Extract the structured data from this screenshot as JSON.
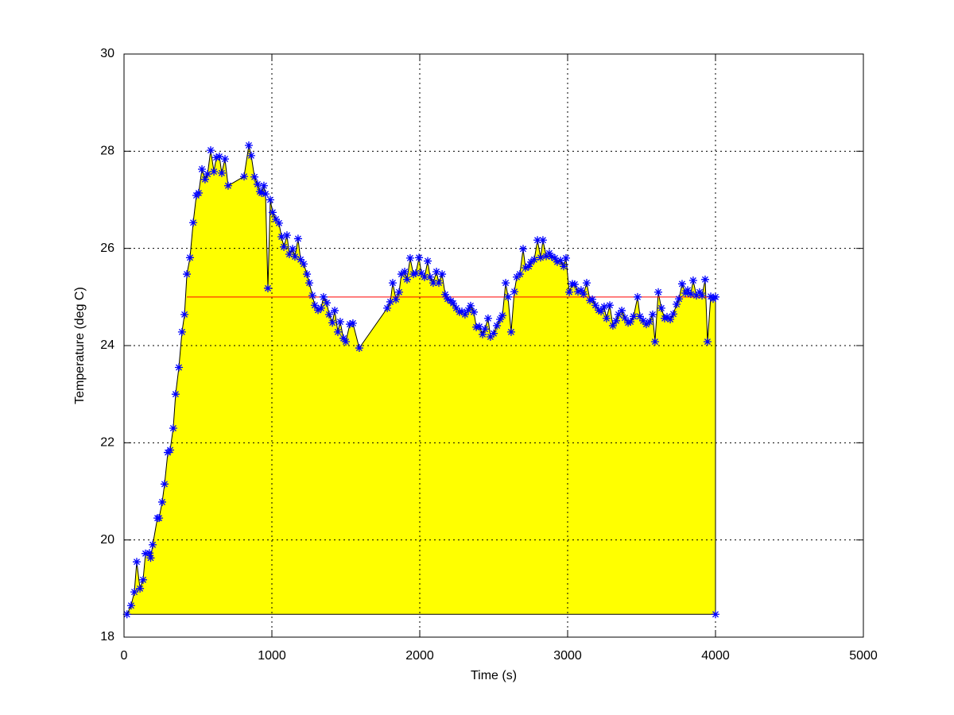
{
  "chart_data": {
    "type": "line",
    "xlabel": "Time (s)",
    "ylabel": "Temperature (deg C)",
    "xlim": [
      0,
      5000
    ],
    "xticks": [
      0,
      1000,
      2000,
      3000,
      4000,
      5000
    ],
    "ylim": [
      18,
      30
    ],
    "yticks": [
      18,
      20,
      22,
      24,
      26,
      28,
      30
    ],
    "grid": true,
    "line_color": "#000000",
    "marker_color": "#0000ff",
    "fill_color": "#ffff00",
    "marker": "*",
    "x": [
      20,
      48,
      70,
      86,
      108,
      129,
      145,
      172,
      180,
      194,
      226,
      237,
      258,
      274,
      296,
      312,
      333,
      349,
      371,
      392,
      409,
      425,
      446,
      468,
      489,
      505,
      527,
      548,
      565,
      586,
      608,
      624,
      645,
      661,
      683,
      704,
      812,
      844,
      860,
      882,
      903,
      919,
      930,
      946,
      957,
      973,
      989,
      1005,
      1027,
      1048,
      1065,
      1081,
      1102,
      1118,
      1140,
      1156,
      1177,
      1194,
      1215,
      1237,
      1253,
      1274,
      1290,
      1312,
      1333,
      1349,
      1371,
      1387,
      1409,
      1425,
      1446,
      1462,
      1484,
      1500,
      1527,
      1548,
      1591,
      1780,
      1801,
      1817,
      1839,
      1860,
      1876,
      1898,
      1914,
      1935,
      1957,
      1973,
      1995,
      2011,
      2032,
      2054,
      2070,
      2091,
      2113,
      2129,
      2151,
      2172,
      2188,
      2210,
      2226,
      2247,
      2269,
      2285,
      2306,
      2328,
      2344,
      2366,
      2382,
      2403,
      2425,
      2441,
      2462,
      2478,
      2500,
      2522,
      2543,
      2559,
      2581,
      2597,
      2618,
      2640,
      2656,
      2677,
      2699,
      2715,
      2737,
      2753,
      2774,
      2796,
      2817,
      2833,
      2855,
      2876,
      2892,
      2914,
      2930,
      2952,
      2973,
      2989,
      3011,
      3032,
      3048,
      3070,
      3091,
      3108,
      3129,
      3151,
      3167,
      3188,
      3210,
      3226,
      3247,
      3263,
      3285,
      3306,
      3328,
      3344,
      3366,
      3387,
      3409,
      3425,
      3446,
      3473,
      3489,
      3511,
      3532,
      3554,
      3575,
      3591,
      3613,
      3634,
      3656,
      3672,
      3694,
      3715,
      3737,
      3753,
      3774,
      3796,
      3812,
      3833,
      3849,
      3871,
      3892,
      3909,
      3930,
      3946,
      3968,
      3984,
      4000,
      4000
    ],
    "values": [
      18.47,
      18.65,
      18.93,
      19.55,
      19.0,
      19.18,
      19.72,
      19.73,
      19.63,
      19.9,
      20.45,
      20.45,
      20.78,
      21.15,
      21.8,
      21.85,
      22.3,
      23.0,
      23.55,
      24.28,
      24.64,
      25.47,
      25.81,
      26.53,
      27.09,
      27.14,
      27.63,
      27.42,
      27.53,
      28.02,
      27.58,
      27.87,
      27.89,
      27.55,
      27.84,
      27.29,
      27.48,
      28.12,
      27.91,
      27.47,
      27.32,
      27.17,
      27.14,
      27.29,
      27.12,
      25.18,
      27.0,
      26.74,
      26.6,
      26.52,
      26.24,
      26.03,
      26.27,
      25.88,
      25.99,
      25.83,
      26.2,
      25.77,
      25.68,
      25.47,
      25.29,
      25.03,
      24.83,
      24.73,
      24.77,
      25.0,
      24.88,
      24.64,
      24.47,
      24.72,
      24.28,
      24.49,
      24.15,
      24.08,
      24.44,
      24.46,
      23.95,
      24.77,
      24.9,
      25.29,
      24.95,
      25.1,
      25.47,
      25.52,
      25.36,
      25.8,
      25.47,
      25.49,
      25.81,
      25.49,
      25.41,
      25.74,
      25.41,
      25.29,
      25.52,
      25.29,
      25.47,
      25.05,
      24.96,
      24.92,
      24.87,
      24.77,
      24.69,
      24.7,
      24.64,
      24.73,
      24.82,
      24.69,
      24.38,
      24.39,
      24.23,
      24.34,
      24.56,
      24.18,
      24.25,
      24.41,
      24.54,
      24.62,
      25.29,
      25.0,
      24.28,
      25.11,
      25.41,
      25.47,
      25.99,
      25.6,
      25.63,
      25.72,
      25.77,
      26.17,
      25.81,
      26.17,
      25.84,
      25.9,
      25.83,
      25.8,
      25.72,
      25.75,
      25.63,
      25.8,
      25.1,
      25.27,
      25.26,
      25.11,
      25.14,
      25.06,
      25.29,
      24.93,
      24.95,
      24.83,
      24.73,
      24.7,
      24.8,
      24.56,
      24.83,
      24.41,
      24.51,
      24.64,
      24.72,
      24.57,
      24.47,
      24.49,
      24.6,
      25.0,
      24.6,
      24.51,
      24.44,
      24.49,
      24.64,
      24.08,
      25.1,
      24.77,
      24.56,
      24.59,
      24.54,
      24.65,
      24.85,
      24.96,
      25.27,
      25.08,
      25.14,
      25.06,
      25.34,
      25.03,
      25.1,
      25.03,
      25.36,
      24.08,
      25.01,
      24.96,
      25.0,
      18.47
    ],
    "hline": {
      "value": 25,
      "x": [
        425,
        4000
      ],
      "color": "#ff0000"
    }
  }
}
